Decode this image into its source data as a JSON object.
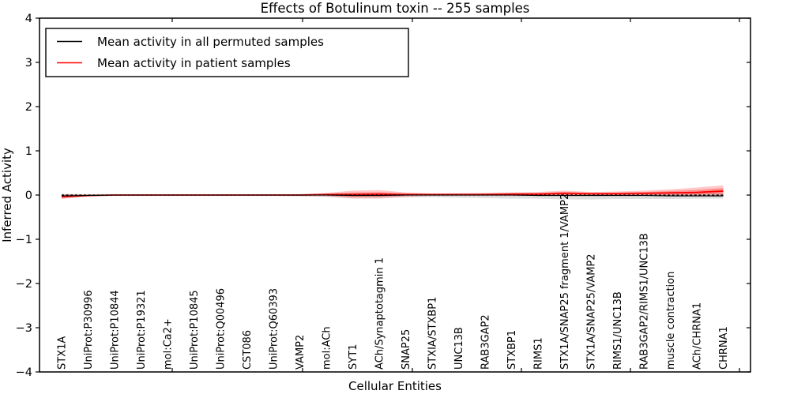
{
  "figure": {
    "background": "#ffffff",
    "accent_red": "#ff0000",
    "accent_black": "#000000",
    "permuted_band_color": "#b0b0b0"
  },
  "legend": {
    "position": "upper left",
    "items": [
      {
        "label": "Mean activity in all permuted samples",
        "color": "#000000"
      },
      {
        "label": "Mean activity in patient samples",
        "color": "#ff0000"
      }
    ]
  },
  "chart_data": {
    "type": "line",
    "title": "Effects of Botulinum toxin -- 255 samples",
    "xlabel": "Cellular Entities",
    "ylabel": "Inferred Activity",
    "ylim": [
      -4,
      4
    ],
    "yticks": [
      -4,
      -3,
      -2,
      -1,
      0,
      1,
      2,
      3,
      4
    ],
    "grid": false,
    "legend_position": "upper left",
    "categories": [
      "STX1A",
      "UniProt:P30996",
      "UniProt:P10844",
      "UniProt:P19321",
      "mol:Ca2+",
      "UniProt:P10845",
      "UniProt:Q00496",
      "CST086",
      "UniProt:Q60393",
      "VAMP2",
      "mol:ACh",
      "SYT1",
      "ACh/Synaptotagmin 1",
      "SNAP25",
      "STXIA/STXBP1",
      "UNC13B",
      "RAB3GAP2",
      "STXBP1",
      "RIMS1",
      "STX1A/SNAP25 fragment 1/VAMP2",
      "STX1A/SNAP25/VAMP2",
      "RIMS1/UNC13B",
      "RAB3GAP2/RIMS1/UNC13B",
      "muscle contraction",
      "ACh/CHRNA1",
      "CHRNA1"
    ],
    "series": [
      {
        "name": "Mean activity in all permuted samples",
        "color": "#000000",
        "values": [
          -0.02,
          -0.01,
          0,
          0,
          0,
          0,
          0,
          0,
          0,
          0,
          0,
          -0.01,
          -0.01,
          0,
          0,
          0,
          0,
          0,
          -0.01,
          -0.01,
          -0.01,
          -0.01,
          -0.01,
          -0.02,
          -0.02,
          -0.02
        ]
      },
      {
        "name": "Mean activity in patient samples",
        "color": "#ff0000",
        "values": [
          -0.04,
          -0.01,
          0,
          0,
          0,
          0,
          0,
          0,
          0,
          0,
          0.01,
          0.01,
          0.02,
          0.01,
          0.01,
          0.01,
          0.01,
          0.02,
          0.02,
          0.04,
          0.03,
          0.03,
          0.04,
          0.05,
          0.06,
          0.09
        ]
      }
    ],
    "bands": [
      {
        "name": "permuted-samples-range",
        "color": "#b0b0b0",
        "upper": [
          0.03,
          0.02,
          0.02,
          0.02,
          0.02,
          0.02,
          0.02,
          0.02,
          0.02,
          0.02,
          0.03,
          0.04,
          0.04,
          0.03,
          0.03,
          0.04,
          0.04,
          0.05,
          0.05,
          0.06,
          0.05,
          0.05,
          0.05,
          0.05,
          0.05,
          0.05
        ],
        "lower": [
          -0.06,
          -0.03,
          -0.02,
          -0.02,
          -0.02,
          -0.02,
          -0.02,
          -0.02,
          -0.02,
          -0.03,
          -0.04,
          -0.06,
          -0.06,
          -0.05,
          -0.05,
          -0.06,
          -0.07,
          -0.08,
          -0.08,
          -0.1,
          -0.1,
          -0.09,
          -0.09,
          -0.09,
          -0.08,
          -0.08
        ]
      },
      {
        "name": "patient-samples-range",
        "color": "#ff0000",
        "upper": [
          0.02,
          0.01,
          0.01,
          0.01,
          0.01,
          0.01,
          0.01,
          0.01,
          0.01,
          0.02,
          0.05,
          0.1,
          0.11,
          0.06,
          0.04,
          0.04,
          0.05,
          0.06,
          0.07,
          0.1,
          0.07,
          0.08,
          0.1,
          0.13,
          0.17,
          0.22
        ],
        "lower": [
          -0.09,
          -0.03,
          -0.01,
          -0.01,
          -0.01,
          -0.01,
          -0.01,
          -0.01,
          -0.01,
          -0.02,
          -0.03,
          -0.08,
          -0.08,
          -0.04,
          -0.02,
          -0.02,
          -0.02,
          -0.02,
          -0.02,
          -0.02,
          -0.02,
          -0.02,
          -0.02,
          -0.02,
          -0.02,
          -0.03
        ]
      }
    ],
    "zero_line": {
      "y": 0,
      "style": "dashed",
      "color": "#000000"
    }
  }
}
